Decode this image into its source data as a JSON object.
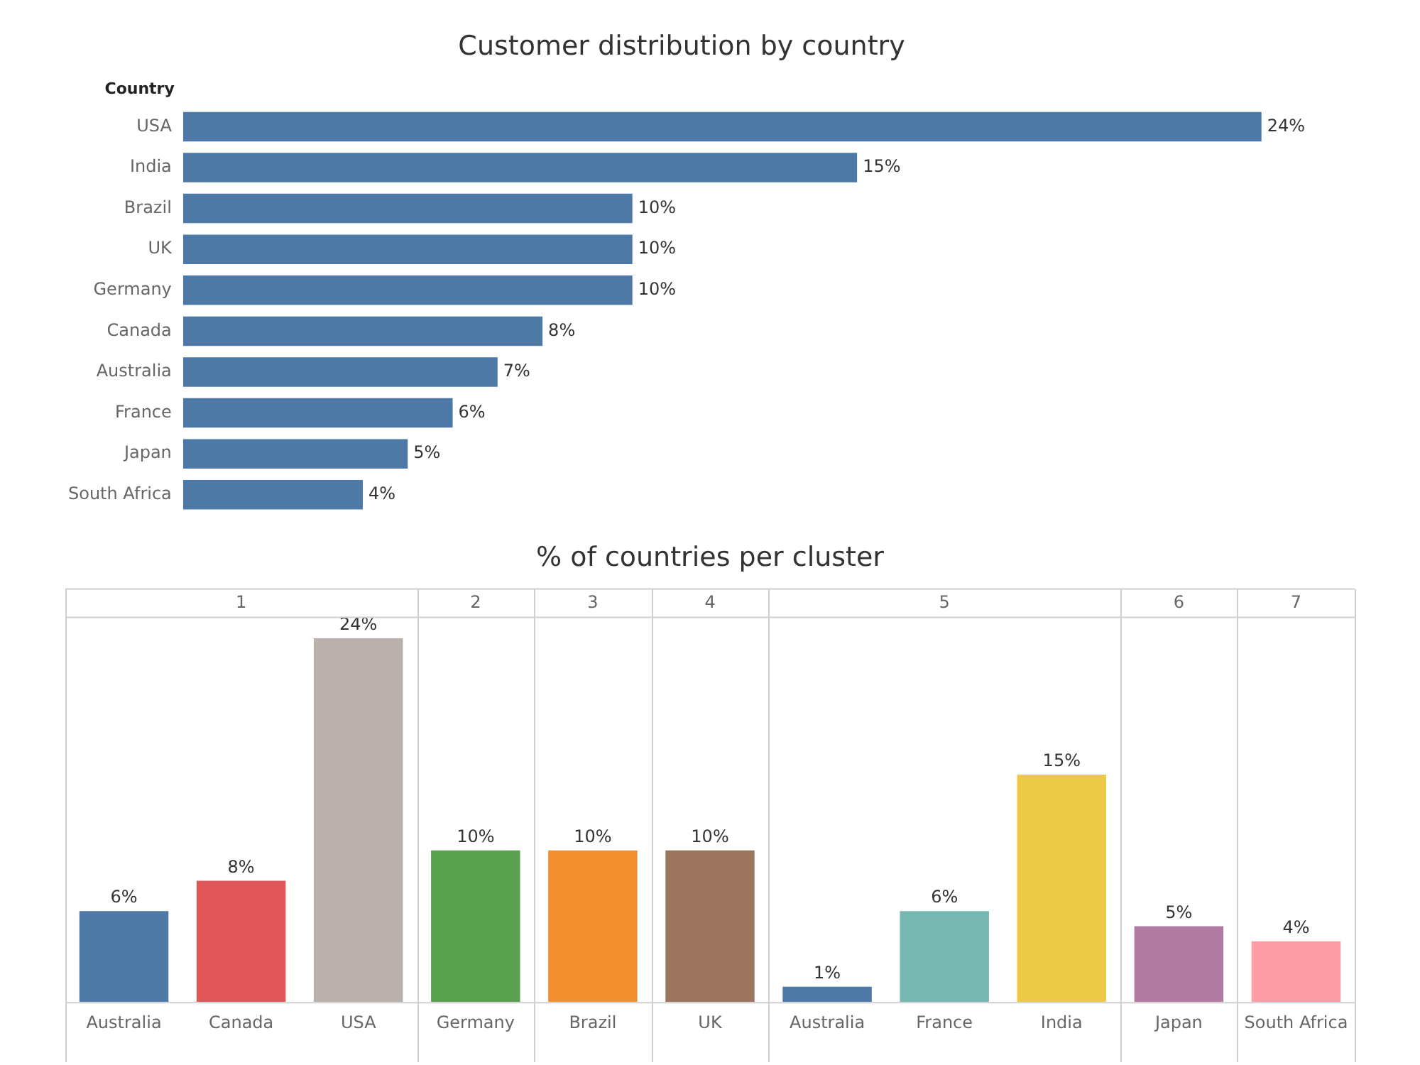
{
  "chart_data": [
    {
      "type": "bar",
      "orientation": "horizontal",
      "title": "Customer distribution by country",
      "ylabel": "Country",
      "tick_labels": "y",
      "color": "#4e79a7",
      "categories": [
        "USA",
        "India",
        "Brazil",
        "UK",
        "Germany",
        "Canada",
        "Australia",
        "France",
        "Japan",
        "South Africa"
      ],
      "values": [
        24,
        15,
        10,
        10,
        10,
        8,
        7,
        6,
        5,
        4
      ],
      "value_labels": [
        "24%",
        "15%",
        "10%",
        "10%",
        "10%",
        "8%",
        "7%",
        "6%",
        "5%",
        "4%"
      ]
    },
    {
      "type": "bar",
      "title": "% of countries per cluster",
      "tick_labels": "x",
      "categories": [
        "Australia",
        "Canada",
        "USA",
        "Germany",
        "Brazil",
        "UK",
        "Australia",
        "France",
        "India",
        "Japan",
        "South Africa"
      ],
      "values": [
        6,
        8,
        24,
        10,
        10,
        10,
        1,
        6,
        15,
        5,
        4
      ],
      "colors": [
        "#4e79a7",
        "#e15759",
        "#bab0ac",
        "#59a14f",
        "#f28e2b",
        "#9c755f",
        "#4e79a7",
        "#76b7b2",
        "#edc948",
        "#b07aa1",
        "#ff9da7"
      ],
      "value_labels": [
        "6%",
        "8%",
        "24%",
        "10%",
        "10%",
        "10%",
        "1%",
        "6%",
        "15%",
        "5%",
        "4%"
      ],
      "annotations": [
        "1",
        "2",
        "3",
        "4",
        "5",
        "6",
        "7"
      ]
    }
  ]
}
